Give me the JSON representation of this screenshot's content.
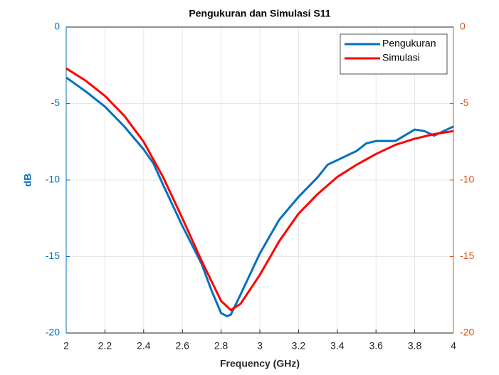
{
  "chart_data": {
    "type": "line",
    "title": "Pengukuran dan Simulasi S11",
    "xlabel": "Frequency (GHz)",
    "ylabel": "dB",
    "xlim": [
      2,
      4
    ],
    "xticks": [
      2,
      2.2,
      2.4,
      2.6,
      2.8,
      3,
      3.2,
      3.4,
      3.6,
      3.8,
      4
    ],
    "ylim": [
      -20,
      0
    ],
    "yticks": [
      0,
      -5,
      -10,
      -15,
      -20
    ],
    "y2lim": [
      -20,
      0
    ],
    "y2ticks": [
      0,
      -5,
      -10,
      -15,
      -20
    ],
    "y_color": "#0072bd",
    "y2_color": "#d95319",
    "grid": true,
    "legend": "upper right",
    "series": [
      {
        "name": "Pengukuran",
        "color": "#0072bd",
        "x": [
          2.0,
          2.1,
          2.2,
          2.3,
          2.4,
          2.45,
          2.5,
          2.6,
          2.7,
          2.75,
          2.8,
          2.83,
          2.85,
          2.9,
          3.0,
          3.1,
          3.2,
          3.3,
          3.35,
          3.4,
          3.5,
          3.55,
          3.6,
          3.7,
          3.8,
          3.85,
          3.9,
          4.0
        ],
        "values": [
          -3.3,
          -4.2,
          -5.2,
          -6.5,
          -8.0,
          -8.9,
          -10.3,
          -13.0,
          -15.5,
          -17.2,
          -18.7,
          -18.9,
          -18.8,
          -17.5,
          -14.8,
          -12.6,
          -11.1,
          -9.8,
          -9.0,
          -8.7,
          -8.1,
          -7.6,
          -7.45,
          -7.45,
          -6.7,
          -6.8,
          -7.1,
          -6.5
        ]
      },
      {
        "name": "Simulasi",
        "color": "#ff0000",
        "axis": "y2",
        "x": [
          2.0,
          2.1,
          2.2,
          2.3,
          2.4,
          2.5,
          2.6,
          2.7,
          2.8,
          2.85,
          2.9,
          3.0,
          3.1,
          3.2,
          3.3,
          3.4,
          3.5,
          3.6,
          3.7,
          3.8,
          3.9,
          4.0
        ],
        "values": [
          -2.7,
          -3.5,
          -4.5,
          -5.8,
          -7.5,
          -9.8,
          -12.5,
          -15.3,
          -17.9,
          -18.5,
          -18.1,
          -16.2,
          -14.0,
          -12.2,
          -10.9,
          -9.8,
          -9.0,
          -8.3,
          -7.7,
          -7.3,
          -7.0,
          -6.8
        ]
      }
    ]
  }
}
